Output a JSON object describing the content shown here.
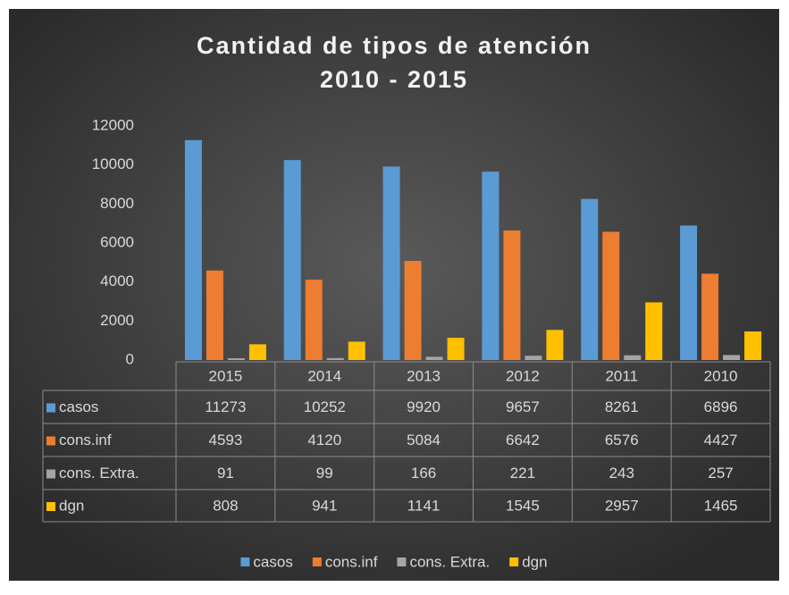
{
  "chart_data": {
    "type": "bar",
    "title": "Cantidad de tipos de atención",
    "subtitle": "2010 - 2015",
    "categories": [
      "2015",
      "2014",
      "2013",
      "2012",
      "2011",
      "2010"
    ],
    "series": [
      {
        "name": "casos",
        "color": "#5b9bd5",
        "values": [
          11273,
          10252,
          9920,
          9657,
          8261,
          6896
        ]
      },
      {
        "name": "cons.inf",
        "color": "#ed7d31",
        "values": [
          4593,
          4120,
          5084,
          6642,
          6576,
          4427
        ]
      },
      {
        "name": "cons. Extra.",
        "color": "#a5a5a5",
        "values": [
          91,
          99,
          166,
          221,
          243,
          257
        ]
      },
      {
        "name": "dgn",
        "color": "#ffc000",
        "values": [
          808,
          941,
          1141,
          1545,
          2957,
          1465
        ]
      }
    ],
    "ylim": [
      0,
      12000
    ],
    "yticks": [
      0,
      2000,
      4000,
      6000,
      8000,
      10000,
      12000
    ],
    "legend": "bottom"
  }
}
